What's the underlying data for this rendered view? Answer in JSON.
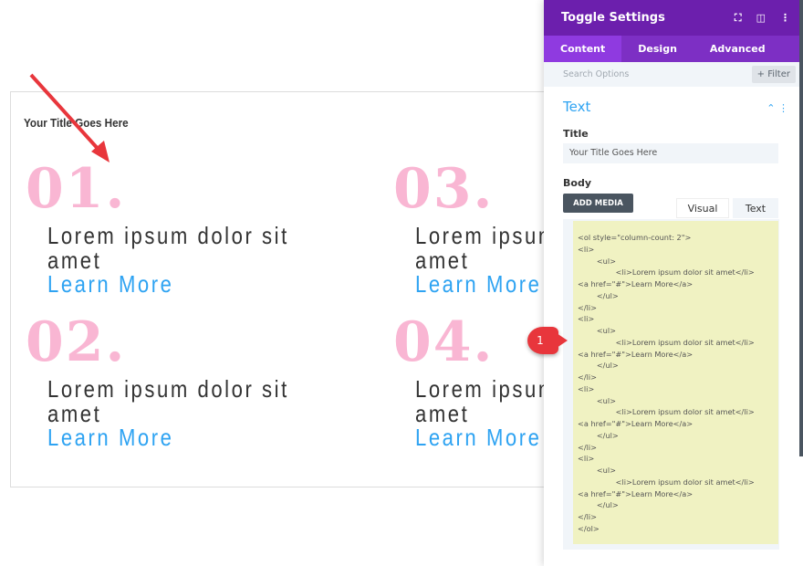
{
  "module": {
    "title": "Your Title Goes Here",
    "items": [
      {
        "num": "01.",
        "text": "Lorem ipsum dolor sit amet",
        "link": "Learn More"
      },
      {
        "num": "02.",
        "text": "Lorem ipsum dolor sit amet",
        "link": "Learn More"
      },
      {
        "num": "03.",
        "text": "Lorem ipsum dolor sit amet",
        "link": "Learn More"
      },
      {
        "num": "04.",
        "text": "Lorem ipsum dolor sit amet",
        "link": "Learn More"
      }
    ]
  },
  "panel": {
    "title": "Toggle Settings",
    "tabs": [
      "Content",
      "Design",
      "Advanced"
    ],
    "search_placeholder": "Search Options",
    "filter": "+ Filter",
    "section": "Text",
    "title_label": "Title",
    "title_value": "Your Title Goes Here",
    "body_label": "Body",
    "add_media": "ADD MEDIA",
    "visual": "Visual",
    "text_tab": "Text",
    "code": "<ol style=\"column-count: 2\">\n<li>\n        <ul>\n                <li>Lorem ipsum dolor sit amet</li>\n<a href=\"#\">Learn More</a>\n        </ul>\n</li>\n<li>\n        <ul>\n                <li>Lorem ipsum dolor sit amet</li>\n<a href=\"#\">Learn More</a>\n        </ul>\n</li>\n<li>\n        <ul>\n                <li>Lorem ipsum dolor sit amet</li>\n<a href=\"#\">Learn More</a>\n        </ul>\n</li>\n<li>\n        <ul>\n                <li>Lorem ipsum dolor sit amet</li>\n<a href=\"#\">Learn More</a>\n        </ul>\n</li>\n</ol>"
  },
  "badge": "1",
  "colors": {
    "accent": "#2ea3f2",
    "number": "#f9b6d3",
    "header": "#6c1fad",
    "annotation": "#e8363c"
  }
}
